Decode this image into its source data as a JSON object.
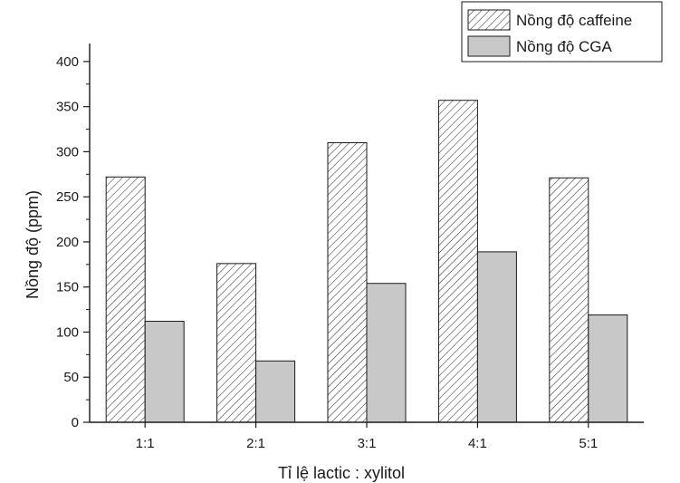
{
  "chart_data": {
    "type": "bar",
    "categories": [
      "1:1",
      "2:1",
      "3:1",
      "4:1",
      "5:1"
    ],
    "series": [
      {
        "name": "Nồng độ caffeine",
        "values": [
          272,
          176,
          310,
          357,
          271
        ],
        "color": "#ffffff",
        "pattern": "diagonal-hatch"
      },
      {
        "name": "Nồng độ CGA",
        "values": [
          112,
          68,
          154,
          189,
          119
        ],
        "color": "#c8c8c8",
        "pattern": "solid"
      }
    ],
    "xlabel": "Tỉ lệ lactic : xylitol",
    "ylabel": "Nồng độ (ppm)",
    "ylim": [
      0,
      420
    ],
    "yticks": [
      0,
      50,
      100,
      150,
      200,
      250,
      300,
      350,
      400
    ],
    "legend": "top-right",
    "grid": false
  }
}
